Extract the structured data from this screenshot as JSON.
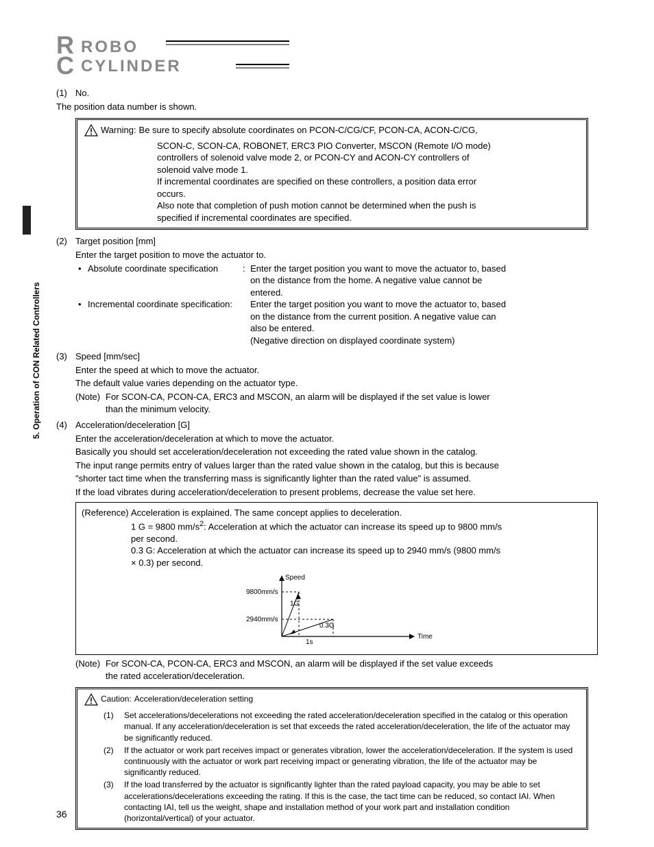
{
  "logo": {
    "line1": "ROBO",
    "line2": "CYLINDER"
  },
  "sidebar": {
    "text": "5. Operation of CON Related Controllers"
  },
  "page_number": "36",
  "s1": {
    "num": "(1)",
    "title": "No.",
    "line": "The position data number is shown."
  },
  "warning": {
    "label": "Warning:",
    "l1": "Be sure to specify absolute coordinates on PCON-C/CG/CF, PCON-CA, ACON-C/CG,",
    "l2": "SCON-C, SCON-CA, ROBONET, ERC3 PIO Converter, MSCON (Remote I/O mode)",
    "l3": "controllers of solenoid valve mode 2, or PCON-CY and ACON-CY controllers of",
    "l4": "solenoid valve mode 1.",
    "l5": "If incremental coordinates are specified on these controllers, a position data error",
    "l6": "occurs.",
    "l7": "Also note that completion of push motion cannot be determined when the push is",
    "l8": "specified if incremental coordinates are specified."
  },
  "s2": {
    "num": "(2)",
    "title": "Target position [mm]",
    "intro": "Enter the target position to move the actuator to.",
    "abs_label": "Absolute coordinate specification",
    "abs_t1": "Enter the target position you want to move the actuator to, based",
    "abs_t2": "on the distance from the home. A negative value cannot be",
    "abs_t3": "entered.",
    "inc_label": "Incremental coordinate specification:",
    "inc_t1": "Enter the target position you want to move the actuator to, based",
    "inc_t2": "on the distance from the current position. A negative value can",
    "inc_t3": "also be entered.",
    "inc_t4": "(Negative direction on displayed coordinate system)"
  },
  "s3": {
    "num": "(3)",
    "title": "Speed [mm/sec]",
    "l1": "Enter the speed at which to move the actuator.",
    "l2": "The default value varies depending on the actuator type.",
    "note_label": "(Note)",
    "note1": "For SCON-CA, PCON-CA, ERC3 and MSCON, an alarm will be displayed if the set value is lower",
    "note2": "than the minimum velocity."
  },
  "s4": {
    "num": "(4)",
    "title": "Acceleration/deceleration [G]",
    "l1": "Enter the acceleration/deceleration at which to move the actuator.",
    "l2": "Basically you should set acceleration/deceleration not exceeding the rated value shown in the catalog.",
    "l3": "The input range permits entry of values larger than the rated value shown in the catalog, but this is because",
    "l4": "\"shorter tact time when the transferring mass is significantly lighter than the rated value\" is assumed.",
    "l5": "If the load vibrates during acceleration/deceleration to present problems, decrease the value set here."
  },
  "ref": {
    "label": "(Reference)",
    "l1": "Acceleration is explained. The same concept applies to deceleration.",
    "l2a": "1 G = 9800 mm/s",
    "l2b": ": Acceleration at which the actuator can increase its speed up to 9800 mm/s",
    "l3": "per second.",
    "l4": "0.3 G: Acceleration at which the actuator can increase its speed up to 2940 mm/s (9800 mm/s",
    "l5": "× 0.3) per second."
  },
  "chart": {
    "y_label": "Speed",
    "x_label": "Time",
    "y1": "9800mm/s",
    "y2": "2940mm/s",
    "g1": "1G",
    "g2": "0.3G",
    "x_tick": "1s",
    "colors": {
      "axis": "#000000",
      "dash": "#000000"
    }
  },
  "note4": {
    "label": "(Note)",
    "l1": "For SCON-CA, PCON-CA, ERC3 and MSCON, an alarm will be displayed if the set value exceeds",
    "l2": "the rated acceleration/deceleration."
  },
  "caution": {
    "label": "Caution:",
    "title": "Acceleration/deceleration setting",
    "items": [
      {
        "num": "(1)",
        "text": "Set accelerations/decelerations not exceeding the rated acceleration/deceleration specified in the catalog or this operation manual. If any acceleration/deceleration is set that exceeds the rated acceleration/deceleration, the life of the actuator may be significantly reduced."
      },
      {
        "num": "(2)",
        "text": "If the actuator or work part receives impact or generates vibration, lower the acceleration/deceleration. If the system is used continuously with the actuator or work part receiving impact or generating vibration, the life of the actuator may be significantly reduced."
      },
      {
        "num": "(3)",
        "text": "If the load transferred by the actuator is significantly lighter than the rated payload capacity, you may be able to set accelerations/decelerations exceeding the rating. If this is the case, the tact time can be reduced, so contact IAI. When contacting IAI, tell us the weight, shape and installation method of your work part and installation condition (horizontal/vertical) of your actuator."
      }
    ]
  }
}
